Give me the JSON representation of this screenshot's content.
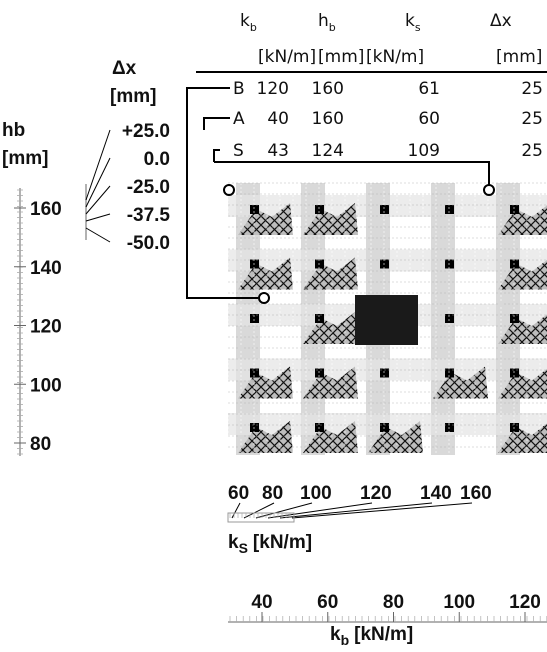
{
  "table": {
    "header": [
      {
        "main": "k",
        "sub": "b"
      },
      {
        "main": "h",
        "sub": "b"
      },
      {
        "main": "k",
        "sub": "s"
      },
      {
        "main": "Δx"
      }
    ],
    "units": [
      "[kN/m]",
      "[mm]",
      "[kN/m]",
      "[mm]"
    ],
    "rows": [
      [
        "B",
        120,
        160,
        61,
        25
      ],
      [
        "A",
        40,
        160,
        60,
        25
      ],
      [
        "S",
        43,
        124,
        109,
        25
      ]
    ]
  },
  "hb_axis": {
    "label": "hb",
    "unit": "[mm]",
    "ticks": [
      160,
      140,
      120,
      100,
      80
    ]
  },
  "dx_legend": {
    "label": "Δx",
    "unit": "[mm]",
    "items": [
      "+25.0",
      "0.0",
      "-25.0",
      "-37.5",
      "-50.0"
    ]
  },
  "ks_axis": {
    "label": "k",
    "sub": "S",
    "unit": "[kN/m]",
    "ticks": [
      60,
      80,
      100,
      120,
      140,
      160
    ]
  },
  "kb_axis": {
    "label": "k",
    "sub": "b",
    "unit": "[kN/m]",
    "ticks": [
      40,
      60,
      80,
      100,
      120
    ]
  }
}
